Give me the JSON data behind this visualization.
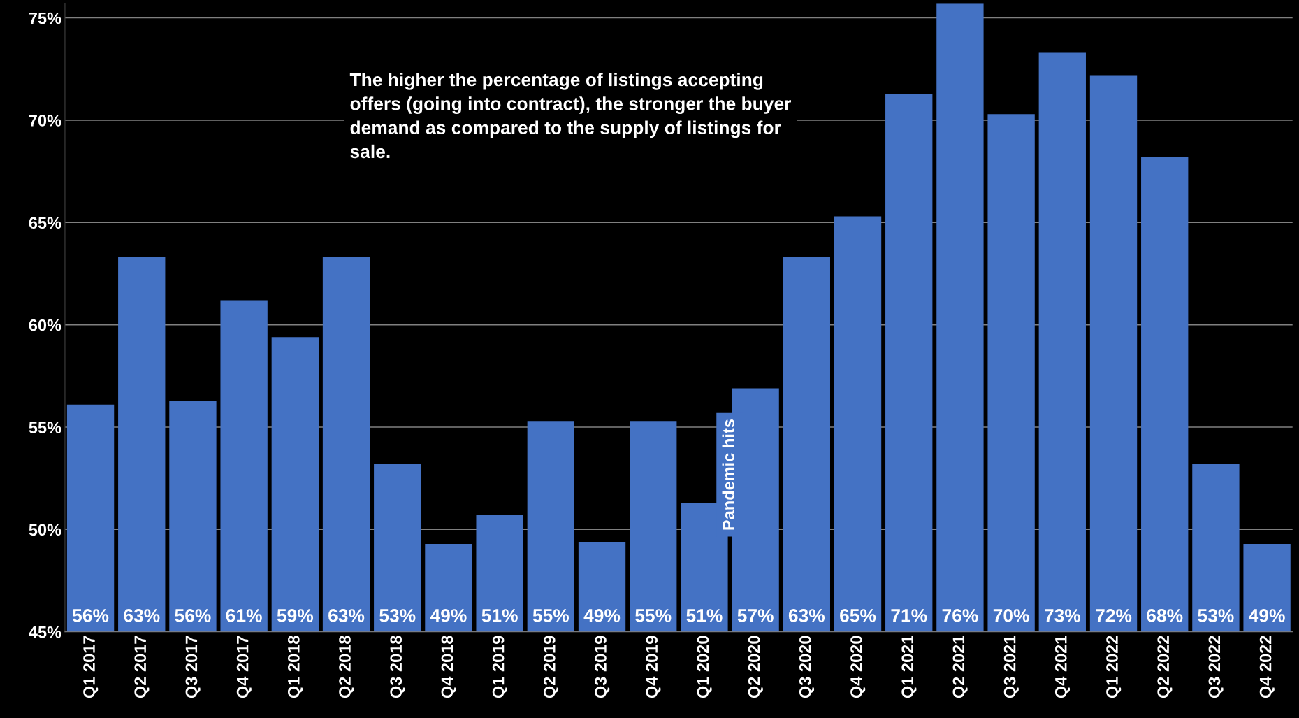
{
  "chart_data": {
    "type": "bar",
    "categories": [
      "Q1 2017",
      "Q2 2017",
      "Q3 2017",
      "Q4 2017",
      "Q1 2018",
      "Q2 2018",
      "Q3 2018",
      "Q4 2018",
      "Q1 2019",
      "Q2 2019",
      "Q3 2019",
      "Q4 2019",
      "Q1 2020",
      "Q2 2020",
      "Q3 2020",
      "Q4 2020",
      "Q1 2021",
      "Q2 2021",
      "Q3 2021",
      "Q4 2021",
      "Q1 2022",
      "Q2 2022",
      "Q3 2022",
      "Q4 2022"
    ],
    "values": [
      56.1,
      63.3,
      56.3,
      61.2,
      59.4,
      63.3,
      53.2,
      49.3,
      50.7,
      55.3,
      49.4,
      55.3,
      51.3,
      56.9,
      63.3,
      65.3,
      71.3,
      75.7,
      70.3,
      73.3,
      72.2,
      68.2,
      53.2,
      49.3
    ],
    "value_labels": [
      "56%",
      "63%",
      "56%",
      "61%",
      "59%",
      "63%",
      "53%",
      "49%",
      "51%",
      "55%",
      "49%",
      "55%",
      "51%",
      "57%",
      "63%",
      "65%",
      "71%",
      "76%",
      "70%",
      "73%",
      "72%",
      "68%",
      "53%",
      "49%"
    ],
    "color": "#4472c4",
    "ylim": [
      45,
      75.7
    ],
    "yticks": [
      {
        "value": 45,
        "label": "45%"
      },
      {
        "value": 50,
        "label": "50%"
      },
      {
        "value": 55,
        "label": "55%"
      },
      {
        "value": 60,
        "label": "60%"
      },
      {
        "value": 65,
        "label": "65%"
      },
      {
        "value": 70,
        "label": "70%"
      },
      {
        "value": 75,
        "label": "75%"
      }
    ],
    "grid": "y",
    "legend": false,
    "annotations": [
      "The higher the percentage of listings accepting offers (going into contract), the stronger the buyer demand as compared to the supply of listings for sale.",
      "Pandemic hits"
    ]
  }
}
